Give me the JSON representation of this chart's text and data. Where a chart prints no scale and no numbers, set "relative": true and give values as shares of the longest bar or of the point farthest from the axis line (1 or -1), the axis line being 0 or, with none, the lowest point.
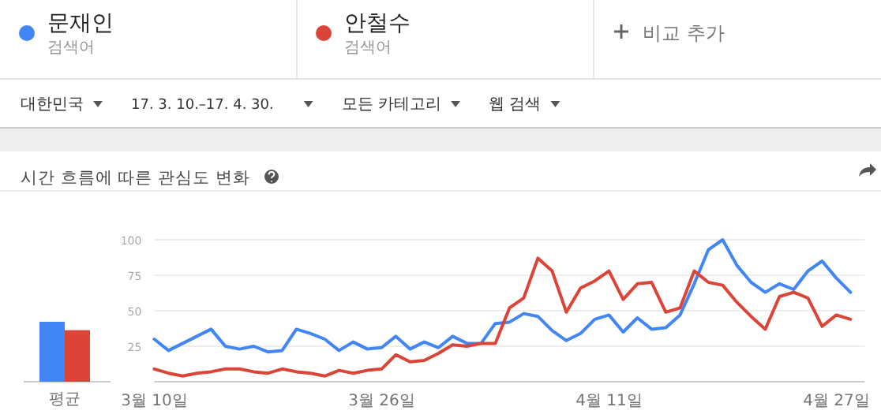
{
  "chart_data": [
    {
      "type": "bar",
      "categories": [
        "평균"
      ],
      "relative": true,
      "series": [
        {
          "color": "#4285f4",
          "values": [
            1
          ]
        },
        {
          "color": "#db4437",
          "values": [
            0.86
          ]
        }
      ]
    },
    {
      "type": "line",
      "title": "시간 흐름에 따른 관심도 변화",
      "annotations": [
        "검색어",
        "검색어",
        "비교 추가",
        "대한민국",
        "17. 3. 10.–17. 4. 30.",
        "모든 카테고리",
        "웹 검색"
      ],
      "x": [
        "--03-10",
        "--03-11",
        "--03-12",
        "--03-13",
        "--03-14",
        "--03-15",
        "--03-16",
        "--03-17",
        "--03-18",
        "--03-19",
        "--03-20",
        "--03-21",
        "--03-22",
        "--03-23",
        "--03-24",
        "--03-25",
        "--03-26",
        "--03-27",
        "--03-28",
        "--03-29",
        "--03-30",
        "--03-31",
        "--04-01",
        "--04-02",
        "--04-03",
        "--04-04",
        "--04-05",
        "--04-06",
        "--04-07",
        "--04-08",
        "--04-09",
        "--04-10",
        "--04-11",
        "--04-12",
        "--04-13",
        "--04-14",
        "--04-15",
        "--04-16",
        "--04-17",
        "--04-18",
        "--04-19",
        "--04-20",
        "--04-21",
        "--04-22",
        "--04-23",
        "--04-24",
        "--04-25",
        "--04-26",
        "--04-27",
        "--04-28"
      ],
      "series": [
        {
          "name": "문재인",
          "color": "#4285f4",
          "values": [
            30,
            22,
            27,
            32,
            37,
            25,
            23,
            25,
            21,
            22,
            37,
            34,
            30,
            22,
            28,
            23,
            24,
            32,
            23,
            28,
            24,
            32,
            27,
            27,
            41,
            42,
            48,
            46,
            36,
            29,
            34,
            44,
            47,
            35,
            45,
            37,
            38,
            47,
            69,
            93,
            100,
            82,
            70,
            63,
            69,
            65,
            78,
            85,
            73,
            63
          ]
        },
        {
          "name": "안철수",
          "color": "#db4437",
          "values": [
            9,
            6,
            4,
            6,
            7,
            9,
            9,
            7,
            6,
            9,
            7,
            6,
            4,
            8,
            6,
            8,
            9,
            19,
            14,
            15,
            20,
            26,
            25,
            27,
            27,
            52,
            59,
            87,
            78,
            49,
            66,
            71,
            78,
            58,
            69,
            70,
            49,
            52,
            78,
            70,
            68,
            56,
            46,
            37,
            60,
            63,
            59,
            39,
            47,
            44
          ]
        }
      ],
      "xlim": [
        "--03-10",
        "--04-29"
      ],
      "xticks": [
        {
          "value": "--03-10",
          "label": "3월 10일"
        },
        {
          "value": "--03-26",
          "label": "3월 26일"
        },
        {
          "value": "--04-11",
          "label": "4월 11일"
        },
        {
          "value": "--04-27",
          "label": "4월 27일"
        }
      ],
      "ylim": [
        0,
        100
      ],
      "yticks": [
        25,
        50,
        75,
        100
      ],
      "grid": "y",
      "legend": "top"
    }
  ]
}
